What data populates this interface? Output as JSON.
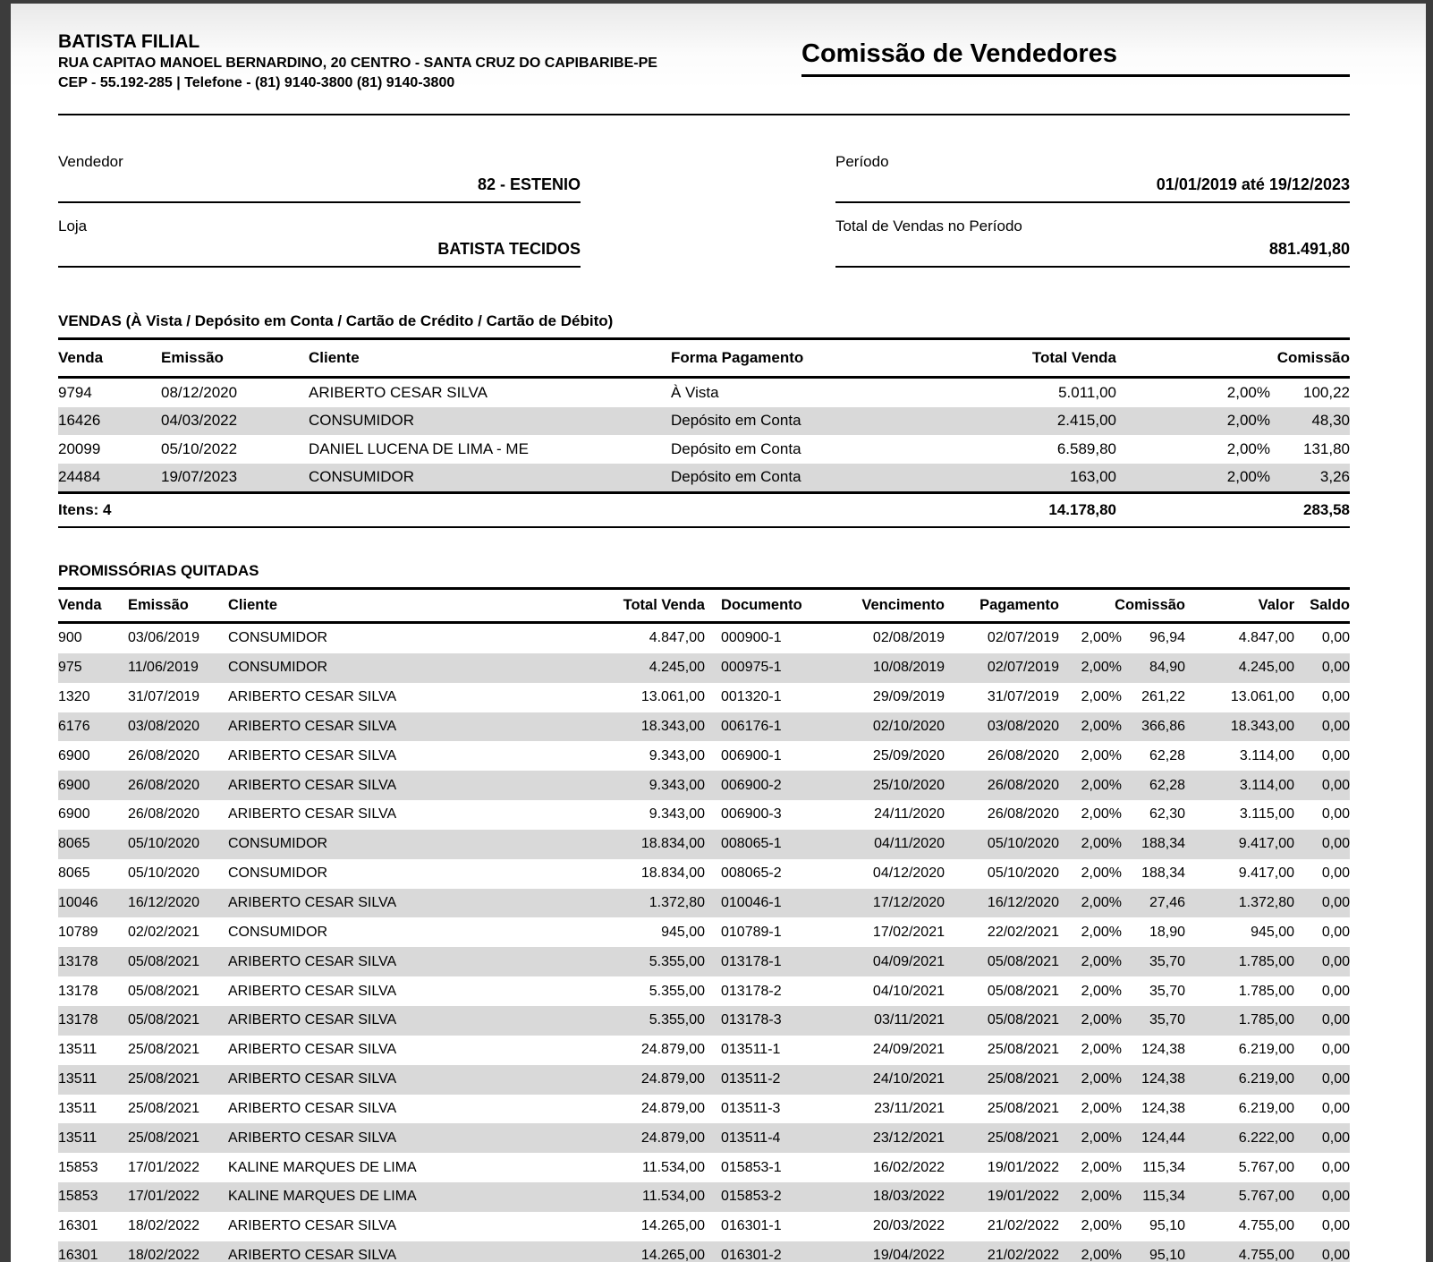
{
  "header": {
    "company_name": "BATISTA FILIAL",
    "address": "RUA CAPITAO MANOEL BERNARDINO, 20 CENTRO - SANTA CRUZ DO CAPIBARIBE-PE",
    "contact": "CEP - 55.192-285 | Telefone - (81) 9140-3800 (81) 9140-3800",
    "report_title": "Comissão de Vendedores"
  },
  "summary": {
    "vendedor": {
      "label": "Vendedor",
      "value": "82 - ESTENIO"
    },
    "loja": {
      "label": "Loja",
      "value": "BATISTA TECIDOS"
    },
    "periodo": {
      "label": "Período",
      "value": "01/01/2019 até 19/12/2023"
    },
    "total_vendas": {
      "label": "Total de Vendas no Período",
      "value": "881.491,80"
    }
  },
  "vendas": {
    "section_title": "VENDAS (À Vista / Depósito em Conta / Cartão de Crédito / Cartão de Débito)",
    "columns": [
      "Venda",
      "Emissão",
      "Cliente",
      "Forma Pagamento",
      "Total Venda",
      "Comissão"
    ],
    "rows": [
      [
        "9794",
        "08/12/2020",
        "ARIBERTO CESAR SILVA",
        "À Vista",
        "5.011,00",
        "2,00%",
        "100,22"
      ],
      [
        "16426",
        "04/03/2022",
        "CONSUMIDOR",
        "Depósito em Conta",
        "2.415,00",
        "2,00%",
        "48,30"
      ],
      [
        "20099",
        "05/10/2022",
        "DANIEL LUCENA DE LIMA - ME",
        "Depósito em Conta",
        "6.589,80",
        "2,00%",
        "131,80"
      ],
      [
        "24484",
        "19/07/2023",
        "CONSUMIDOR",
        "Depósito em Conta",
        "163,00",
        "2,00%",
        "3,26"
      ]
    ],
    "totals": {
      "items_label": "Itens: 4",
      "total_venda": "14.178,80",
      "comissao": "283,58"
    }
  },
  "promissorias": {
    "section_title": "PROMISSÓRIAS QUITADAS",
    "columns": [
      "Venda",
      "Emissão",
      "Cliente",
      "Total Venda",
      "Documento",
      "Vencimento",
      "Pagamento",
      "Comissão",
      "Valor",
      "Saldo"
    ],
    "rows": [
      [
        "900",
        "03/06/2019",
        "CONSUMIDOR",
        "4.847,00",
        "000900-1",
        "02/08/2019",
        "02/07/2019",
        "2,00%",
        "96,94",
        "4.847,00",
        "0,00"
      ],
      [
        "975",
        "11/06/2019",
        "CONSUMIDOR",
        "4.245,00",
        "000975-1",
        "10/08/2019",
        "02/07/2019",
        "2,00%",
        "84,90",
        "4.245,00",
        "0,00"
      ],
      [
        "1320",
        "31/07/2019",
        "ARIBERTO CESAR SILVA",
        "13.061,00",
        "001320-1",
        "29/09/2019",
        "31/07/2019",
        "2,00%",
        "261,22",
        "13.061,00",
        "0,00"
      ],
      [
        "6176",
        "03/08/2020",
        "ARIBERTO CESAR SILVA",
        "18.343,00",
        "006176-1",
        "02/10/2020",
        "03/08/2020",
        "2,00%",
        "366,86",
        "18.343,00",
        "0,00"
      ],
      [
        "6900",
        "26/08/2020",
        "ARIBERTO CESAR SILVA",
        "9.343,00",
        "006900-1",
        "25/09/2020",
        "26/08/2020",
        "2,00%",
        "62,28",
        "3.114,00",
        "0,00"
      ],
      [
        "6900",
        "26/08/2020",
        "ARIBERTO CESAR SILVA",
        "9.343,00",
        "006900-2",
        "25/10/2020",
        "26/08/2020",
        "2,00%",
        "62,28",
        "3.114,00",
        "0,00"
      ],
      [
        "6900",
        "26/08/2020",
        "ARIBERTO CESAR SILVA",
        "9.343,00",
        "006900-3",
        "24/11/2020",
        "26/08/2020",
        "2,00%",
        "62,30",
        "3.115,00",
        "0,00"
      ],
      [
        "8065",
        "05/10/2020",
        "CONSUMIDOR",
        "18.834,00",
        "008065-1",
        "04/11/2020",
        "05/10/2020",
        "2,00%",
        "188,34",
        "9.417,00",
        "0,00"
      ],
      [
        "8065",
        "05/10/2020",
        "CONSUMIDOR",
        "18.834,00",
        "008065-2",
        "04/12/2020",
        "05/10/2020",
        "2,00%",
        "188,34",
        "9.417,00",
        "0,00"
      ],
      [
        "10046",
        "16/12/2020",
        "ARIBERTO CESAR SILVA",
        "1.372,80",
        "010046-1",
        "17/12/2020",
        "16/12/2020",
        "2,00%",
        "27,46",
        "1.372,80",
        "0,00"
      ],
      [
        "10789",
        "02/02/2021",
        "CONSUMIDOR",
        "945,00",
        "010789-1",
        "17/02/2021",
        "22/02/2021",
        "2,00%",
        "18,90",
        "945,00",
        "0,00"
      ],
      [
        "13178",
        "05/08/2021",
        "ARIBERTO CESAR SILVA",
        "5.355,00",
        "013178-1",
        "04/09/2021",
        "05/08/2021",
        "2,00%",
        "35,70",
        "1.785,00",
        "0,00"
      ],
      [
        "13178",
        "05/08/2021",
        "ARIBERTO CESAR SILVA",
        "5.355,00",
        "013178-2",
        "04/10/2021",
        "05/08/2021",
        "2,00%",
        "35,70",
        "1.785,00",
        "0,00"
      ],
      [
        "13178",
        "05/08/2021",
        "ARIBERTO CESAR SILVA",
        "5.355,00",
        "013178-3",
        "03/11/2021",
        "05/08/2021",
        "2,00%",
        "35,70",
        "1.785,00",
        "0,00"
      ],
      [
        "13511",
        "25/08/2021",
        "ARIBERTO CESAR SILVA",
        "24.879,00",
        "013511-1",
        "24/09/2021",
        "25/08/2021",
        "2,00%",
        "124,38",
        "6.219,00",
        "0,00"
      ],
      [
        "13511",
        "25/08/2021",
        "ARIBERTO CESAR SILVA",
        "24.879,00",
        "013511-2",
        "24/10/2021",
        "25/08/2021",
        "2,00%",
        "124,38",
        "6.219,00",
        "0,00"
      ],
      [
        "13511",
        "25/08/2021",
        "ARIBERTO CESAR SILVA",
        "24.879,00",
        "013511-3",
        "23/11/2021",
        "25/08/2021",
        "2,00%",
        "124,38",
        "6.219,00",
        "0,00"
      ],
      [
        "13511",
        "25/08/2021",
        "ARIBERTO CESAR SILVA",
        "24.879,00",
        "013511-4",
        "23/12/2021",
        "25/08/2021",
        "2,00%",
        "124,44",
        "6.222,00",
        "0,00"
      ],
      [
        "15853",
        "17/01/2022",
        "KALINE MARQUES DE LIMA",
        "11.534,00",
        "015853-1",
        "16/02/2022",
        "19/01/2022",
        "2,00%",
        "115,34",
        "5.767,00",
        "0,00"
      ],
      [
        "15853",
        "17/01/2022",
        "KALINE MARQUES DE LIMA",
        "11.534,00",
        "015853-2",
        "18/03/2022",
        "19/01/2022",
        "2,00%",
        "115,34",
        "5.767,00",
        "0,00"
      ],
      [
        "16301",
        "18/02/2022",
        "ARIBERTO CESAR SILVA",
        "14.265,00",
        "016301-1",
        "20/03/2022",
        "21/02/2022",
        "2,00%",
        "95,10",
        "4.755,00",
        "0,00"
      ],
      [
        "16301",
        "18/02/2022",
        "ARIBERTO CESAR SILVA",
        "14.265,00",
        "016301-2",
        "19/04/2022",
        "21/02/2022",
        "2,00%",
        "95,10",
        "4.755,00",
        "0,00"
      ]
    ]
  },
  "colors": {
    "stripe": "#d9d9d9",
    "frame": "#3c3c3c",
    "rule": "#000000"
  }
}
